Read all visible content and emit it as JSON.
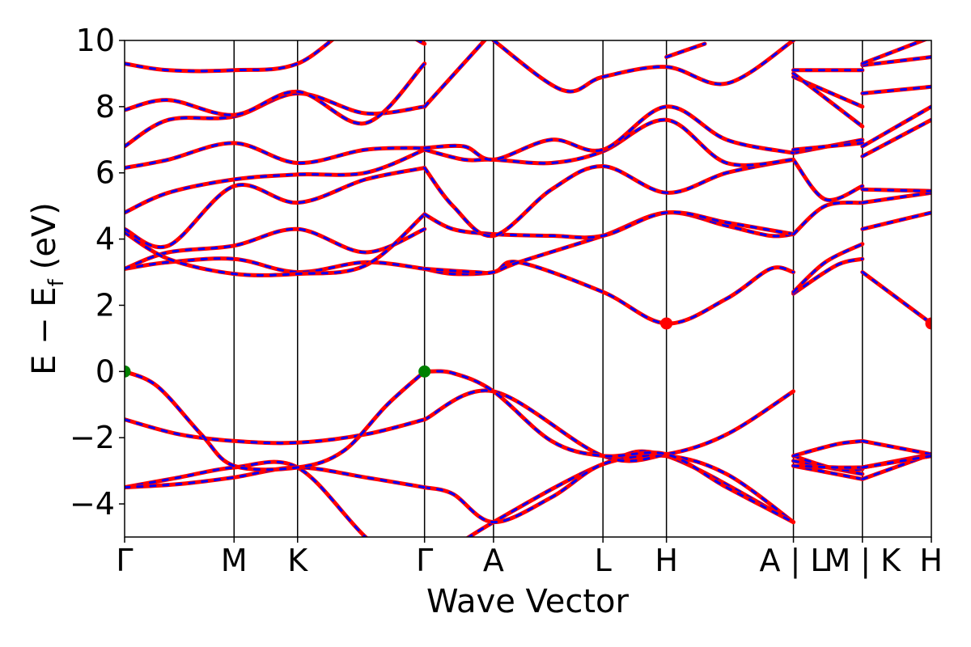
{
  "chart_data": {
    "type": "line",
    "title": "",
    "xlabel": "Wave Vector",
    "ylabel": "E − E",
    "ylabel_sub": "f",
    "ylabel_unit": "(eV)",
    "ylim": [
      -5,
      10
    ],
    "yticks": [
      {
        "value": -4,
        "label": "−4"
      },
      {
        "value": -2,
        "label": "−2"
      },
      {
        "value": 0,
        "label": "0"
      },
      {
        "value": 2,
        "label": "2"
      },
      {
        "value": 4,
        "label": "4"
      },
      {
        "value": 6,
        "label": "6"
      },
      {
        "value": 8,
        "label": "8"
      },
      {
        "value": 10,
        "label": "10"
      }
    ],
    "kpoints": [
      {
        "x": 0.0,
        "label": "Γ"
      },
      {
        "x": 1.0,
        "label": "M"
      },
      {
        "x": 1.58,
        "label": "K"
      },
      {
        "x": 2.74,
        "label": "Γ"
      },
      {
        "x": 3.37,
        "label": "A"
      },
      {
        "x": 4.37,
        "label": "L"
      },
      {
        "x": 4.95,
        "label": "H"
      },
      {
        "x": 6.11,
        "label": "A | L"
      },
      {
        "x": 6.74,
        "label": "M | K"
      },
      {
        "x": 7.37,
        "label": "H"
      }
    ],
    "xlim": [
      0,
      7.37
    ],
    "colors": {
      "band": "#ff0000",
      "overlay": "#0000ff",
      "vbm": "#008000",
      "cbm": "#ff0000"
    },
    "extrema": [
      {
        "x": 0.0,
        "y": 0.0,
        "kind": "vbm"
      },
      {
        "x": 2.74,
        "y": 0.0,
        "kind": "vbm"
      },
      {
        "x": 4.95,
        "y": 1.45,
        "kind": "cbm"
      },
      {
        "x": 7.37,
        "y": 1.45,
        "kind": "cbm"
      }
    ],
    "bands": [
      {
        "segments": [
          [
            [
              0,
              -5.9
            ],
            [
              1.0,
              -7.4
            ],
            [
              1.58,
              -7.8
            ],
            [
              2.74,
              -5.9
            ]
          ],
          [
            [
              2.74,
              -5.9
            ],
            [
              3.37,
              -4.55
            ],
            [
              4.37,
              -2.8
            ],
            [
              4.95,
              -2.55
            ],
            [
              6.11,
              -4.55
            ]
          ],
          [
            [
              6.11,
              -2.85
            ],
            [
              6.74,
              -3.25
            ]
          ],
          [
            [
              6.74,
              -3.25
            ],
            [
              7.37,
              -2.5
            ]
          ]
        ]
      },
      {
        "segments": [
          [
            [
              0,
              -3.5
            ],
            [
              0.5,
              -3.2
            ],
            [
              1.0,
              -2.9
            ],
            [
              1.58,
              -2.9
            ],
            [
              2.2,
              -5.0
            ],
            [
              2.74,
              -6.5
            ]
          ],
          [
            [
              2.74,
              -3.5
            ],
            [
              3.0,
              -3.7
            ],
            [
              3.37,
              -4.55
            ],
            [
              3.9,
              -3.8
            ],
            [
              4.37,
              -2.8
            ],
            [
              4.95,
              -2.55
            ],
            [
              5.5,
              -3.1
            ],
            [
              6.11,
              -4.55
            ]
          ],
          [
            [
              6.11,
              -2.7
            ],
            [
              6.74,
              -3.1
            ]
          ],
          [
            [
              6.74,
              -2.9
            ],
            [
              7.37,
              -2.5
            ]
          ]
        ]
      },
      {
        "segments": [
          [
            [
              0,
              -3.5
            ],
            [
              0.5,
              -3.4
            ],
            [
              1.0,
              -3.2
            ],
            [
              1.58,
              -2.9
            ],
            [
              2.2,
              -3.2
            ],
            [
              2.74,
              -3.5
            ]
          ],
          [
            [
              2.74,
              -1.45
            ],
            [
              3.37,
              -0.6
            ],
            [
              4.37,
              -2.55
            ],
            [
              4.95,
              -2.5
            ],
            [
              5.5,
              -1.9
            ],
            [
              6.11,
              -0.6
            ]
          ],
          [
            [
              6.11,
              -2.55
            ],
            [
              6.5,
              -2.95
            ],
            [
              6.74,
              -2.95
            ]
          ],
          [
            [
              6.74,
              -2.9
            ],
            [
              7.37,
              -2.55
            ]
          ]
        ]
      },
      {
        "segments": [
          [
            [
              0,
              -1.45
            ],
            [
              0.5,
              -1.9
            ],
            [
              1.0,
              -2.1
            ],
            [
              1.58,
              -2.15
            ],
            [
              2.2,
              -1.9
            ],
            [
              2.74,
              -1.45
            ]
          ],
          [
            [
              2.74,
              0.0
            ],
            [
              3.0,
              -0.05
            ],
            [
              3.37,
              -0.6
            ],
            [
              3.9,
              -2.1
            ],
            [
              4.37,
              -2.55
            ],
            [
              4.95,
              -2.5
            ],
            [
              5.5,
              -3.5
            ],
            [
              6.11,
              -4.55
            ]
          ],
          [
            [
              6.11,
              -2.55
            ],
            [
              6.5,
              -2.2
            ],
            [
              6.74,
              -2.1
            ]
          ],
          [
            [
              6.74,
              -2.1
            ],
            [
              7.37,
              -2.5
            ]
          ]
        ]
      },
      {
        "segments": [
          [
            [
              0,
              0.0
            ],
            [
              0.3,
              -0.45
            ],
            [
              0.7,
              -1.9
            ],
            [
              1.0,
              -2.85
            ],
            [
              1.58,
              -2.9
            ],
            [
              2.0,
              -2.4
            ],
            [
              2.4,
              -1.0
            ],
            [
              2.74,
              0.0
            ]
          ],
          [
            [
              6.11,
              -2.85
            ],
            [
              6.5,
              -2.9
            ],
            [
              6.74,
              -2.9
            ]
          ],
          [
            [
              6.74,
              -2.9
            ],
            [
              7.37,
              -2.55
            ]
          ]
        ]
      },
      {
        "segments": [
          [
            [
              0,
              3.1
            ],
            [
              0.4,
              3.3
            ],
            [
              1.0,
              3.4
            ],
            [
              1.58,
              3.0
            ],
            [
              2.2,
              3.3
            ],
            [
              2.74,
              3.1
            ]
          ],
          [
            [
              2.74,
              3.1
            ],
            [
              3.0,
              2.95
            ],
            [
              3.37,
              3.0
            ],
            [
              3.6,
              3.3
            ],
            [
              4.37,
              2.4
            ],
            [
              4.95,
              1.45
            ],
            [
              5.5,
              2.2
            ],
            [
              5.9,
              3.1
            ],
            [
              6.11,
              3.0
            ]
          ],
          [
            [
              6.11,
              2.35
            ],
            [
              6.5,
              3.2
            ],
            [
              6.74,
              3.4
            ]
          ],
          [
            [
              6.74,
              3.0
            ],
            [
              7.37,
              1.45
            ]
          ]
        ]
      },
      {
        "segments": [
          [
            [
              0,
              3.1
            ],
            [
              0.4,
              3.6
            ],
            [
              1.0,
              3.8
            ],
            [
              1.58,
              4.3
            ],
            [
              2.2,
              3.6
            ],
            [
              2.74,
              4.3
            ]
          ],
          [
            [
              2.74,
              3.1
            ],
            [
              3.2,
              3.0
            ],
            [
              3.37,
              3.0
            ],
            [
              3.6,
              3.3
            ],
            [
              4.37,
              4.1
            ],
            [
              4.95,
              4.8
            ],
            [
              5.5,
              4.4
            ],
            [
              5.9,
              4.1
            ],
            [
              6.11,
              4.15
            ]
          ],
          [
            [
              6.11,
              2.4
            ],
            [
              6.4,
              3.3
            ],
            [
              6.74,
              3.85
            ]
          ],
          [
            [
              6.74,
              4.3
            ],
            [
              7.37,
              4.8
            ]
          ]
        ]
      },
      {
        "segments": [
          [
            [
              0,
              4.2
            ],
            [
              0.4,
              3.4
            ],
            [
              1.0,
              2.95
            ],
            [
              1.58,
              2.95
            ],
            [
              2.2,
              3.2
            ],
            [
              2.74,
              4.75
            ]
          ],
          [
            [
              2.74,
              4.75
            ],
            [
              3.0,
              4.3
            ],
            [
              3.37,
              4.15
            ],
            [
              3.9,
              4.1
            ],
            [
              4.37,
              4.1
            ],
            [
              4.95,
              4.8
            ],
            [
              5.5,
              4.5
            ],
            [
              6.11,
              4.15
            ]
          ],
          [
            [
              6.11,
              4.15
            ],
            [
              6.4,
              5.0
            ],
            [
              6.74,
              5.1
            ]
          ],
          [
            [
              6.74,
              5.1
            ],
            [
              7.37,
              5.4
            ]
          ]
        ]
      },
      {
        "segments": [
          [
            [
              0,
              4.3
            ],
            [
              0.4,
              3.8
            ],
            [
              1.0,
              5.6
            ],
            [
              1.58,
              5.1
            ],
            [
              2.2,
              5.8
            ],
            [
              2.74,
              6.15
            ]
          ],
          [
            [
              2.74,
              6.15
            ],
            [
              3.0,
              5.0
            ],
            [
              3.37,
              4.1
            ],
            [
              3.9,
              5.5
            ],
            [
              4.37,
              6.2
            ],
            [
              4.95,
              5.4
            ],
            [
              5.5,
              6.0
            ],
            [
              6.11,
              6.4
            ]
          ],
          [
            [
              6.11,
              6.4
            ],
            [
              6.4,
              5.2
            ],
            [
              6.74,
              5.6
            ]
          ],
          [
            [
              6.74,
              5.5
            ],
            [
              7.37,
              5.45
            ]
          ]
        ]
      },
      {
        "segments": [
          [
            [
              0,
              4.8
            ],
            [
              0.4,
              5.4
            ],
            [
              1.0,
              5.8
            ],
            [
              1.58,
              5.95
            ],
            [
              2.2,
              6.0
            ],
            [
              2.74,
              6.7
            ]
          ],
          [
            [
              2.74,
              6.7
            ],
            [
              3.1,
              6.4
            ],
            [
              3.37,
              6.4
            ],
            [
              3.9,
              6.3
            ],
            [
              4.37,
              6.65
            ],
            [
              4.95,
              7.6
            ],
            [
              5.5,
              6.3
            ],
            [
              6.11,
              6.4
            ]
          ],
          [
            [
              6.11,
              6.6
            ],
            [
              6.74,
              7.0
            ]
          ],
          [
            [
              6.74,
              6.5
            ],
            [
              7.37,
              7.6
            ]
          ]
        ]
      },
      {
        "segments": [
          [
            [
              0,
              6.15
            ],
            [
              0.4,
              6.4
            ],
            [
              1.0,
              6.9
            ],
            [
              1.58,
              6.3
            ],
            [
              2.2,
              6.7
            ],
            [
              2.74,
              6.75
            ]
          ],
          [
            [
              2.74,
              6.75
            ],
            [
              3.1,
              6.8
            ],
            [
              3.37,
              6.4
            ],
            [
              3.9,
              7.0
            ],
            [
              4.37,
              6.7
            ],
            [
              4.95,
              8.0
            ],
            [
              5.5,
              7.0
            ],
            [
              6.11,
              6.6
            ]
          ],
          [
            [
              6.11,
              6.7
            ],
            [
              6.74,
              6.9
            ]
          ],
          [
            [
              6.74,
              6.8
            ],
            [
              7.37,
              8.0
            ]
          ]
        ]
      },
      {
        "segments": [
          [
            [
              0,
              6.8
            ],
            [
              0.4,
              7.6
            ],
            [
              1.0,
              7.7
            ],
            [
              1.58,
              8.4
            ],
            [
              2.2,
              7.8
            ],
            [
              2.74,
              8.0
            ]
          ],
          [
            [
              2.74,
              8.0
            ],
            [
              3.37,
              10.3
            ]
          ],
          [
            [
              3.37,
              10.0
            ],
            [
              4.0,
              8.5
            ],
            [
              4.37,
              8.9
            ],
            [
              4.95,
              9.2
            ],
            [
              5.5,
              8.7
            ],
            [
              6.11,
              10.0
            ]
          ],
          [
            [
              6.11,
              8.9
            ],
            [
              6.74,
              8.0
            ]
          ],
          [
            [
              6.74,
              8.4
            ],
            [
              7.37,
              8.6
            ]
          ]
        ]
      },
      {
        "segments": [
          [
            [
              0,
              7.9
            ],
            [
              0.4,
              8.2
            ],
            [
              1.0,
              7.75
            ],
            [
              1.58,
              8.45
            ],
            [
              2.2,
              7.5
            ],
            [
              2.74,
              9.3
            ]
          ],
          [
            [
              4.95,
              9.5
            ],
            [
              5.3,
              9.9
            ]
          ],
          [
            [
              6.11,
              9.0
            ],
            [
              6.74,
              7.4
            ]
          ],
          [
            [
              6.74,
              9.25
            ],
            [
              7.37,
              9.5
            ]
          ]
        ]
      },
      {
        "segments": [
          [
            [
              0,
              9.3
            ],
            [
              0.4,
              9.1
            ],
            [
              1.0,
              9.1
            ],
            [
              1.58,
              9.3
            ],
            [
              2.2,
              10.6
            ],
            [
              2.74,
              9.9
            ]
          ],
          [
            [
              6.11,
              9.1
            ],
            [
              6.74,
              9.1
            ]
          ],
          [
            [
              6.74,
              9.3
            ],
            [
              7.37,
              10.1
            ]
          ]
        ]
      }
    ]
  }
}
